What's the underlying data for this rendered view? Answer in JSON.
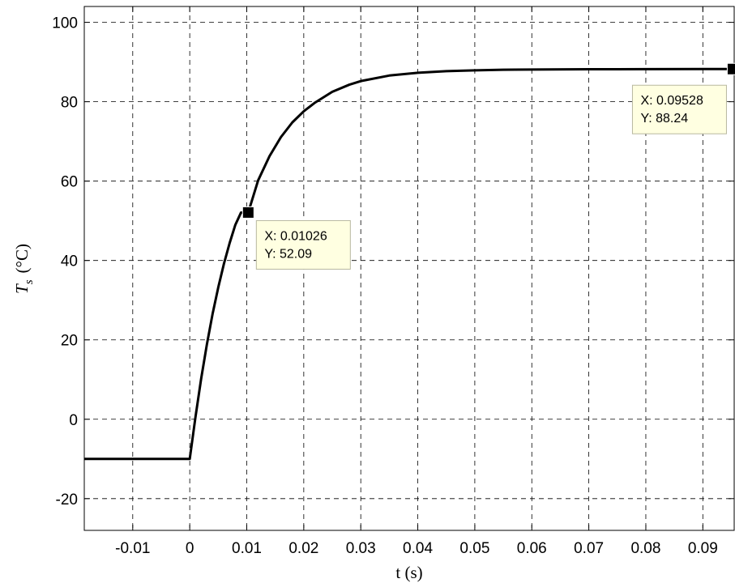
{
  "chart_data": {
    "type": "line",
    "title": "",
    "xlabel": "t (s)",
    "ylabel": {
      "symbol": "T",
      "subscript": "s",
      "unit": "(°C)"
    },
    "xlim": [
      -0.0185,
      0.0955
    ],
    "ylim": [
      -28,
      104
    ],
    "xticks": [
      -0.01,
      0,
      0.01,
      0.02,
      0.03,
      0.04,
      0.05,
      0.06,
      0.07,
      0.08,
      0.09
    ],
    "xtick_labels": [
      "-0.01",
      "0",
      "0.01",
      "0.02",
      "0.03",
      "0.04",
      "0.05",
      "0.06",
      "0.07",
      "0.08",
      "0.09"
    ],
    "yticks": [
      -20,
      0,
      20,
      40,
      60,
      80,
      100
    ],
    "ytick_labels": [
      "-20",
      "0",
      "20",
      "40",
      "60",
      "80",
      "100"
    ],
    "grid": true,
    "grid_style": "dashed",
    "line_color": "#000000",
    "series": [
      {
        "x": [
          -0.0185,
          0,
          0.001,
          0.002,
          0.003,
          0.004,
          0.005,
          0.006,
          0.007,
          0.008,
          0.009,
          0.01026,
          0.012,
          0.014,
          0.016,
          0.018,
          0.02,
          0.022,
          0.025,
          0.028,
          0.03,
          0.035,
          0.04,
          0.045,
          0.05,
          0.055,
          0.06,
          0.07,
          0.08,
          0.09,
          0.09528
        ],
        "y": [
          -10,
          -10,
          0.5,
          10.2,
          18.8,
          26.5,
          33.2,
          39.2,
          44.4,
          49.0,
          52.09,
          52.09,
          60.2,
          66.3,
          71.1,
          74.8,
          77.6,
          79.8,
          82.5,
          84.3,
          85.2,
          86.6,
          87.3,
          87.7,
          87.9,
          88.05,
          88.12,
          88.18,
          88.21,
          88.23,
          88.24
        ]
      }
    ],
    "data_tips": [
      {
        "x": 0.01026,
        "y": 52.09,
        "x_text": "X: 0.01026",
        "y_text": "Y: 52.09",
        "box_fill": "#ffffe1"
      },
      {
        "x": 0.09528,
        "y": 88.24,
        "x_text": "X: 0.09528",
        "y_text": "Y: 88.24",
        "box_fill": "#ffffe1"
      }
    ]
  }
}
